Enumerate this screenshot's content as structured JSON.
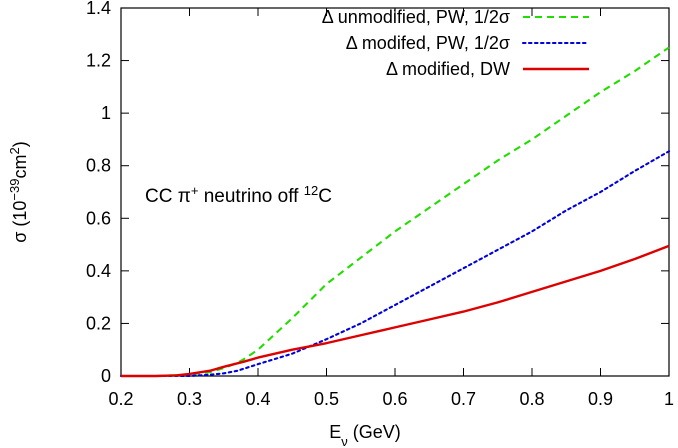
{
  "chart_data": {
    "type": "line",
    "xlabel": {
      "main": "E",
      "sub": "ν",
      "rest": " (GeV)"
    },
    "ylabel": {
      "main": "σ (10",
      "sup1": "−39",
      "mid": "cm",
      "sup2": "2",
      "end": ")"
    },
    "xlim": [
      0.2,
      1.0
    ],
    "ylim": [
      0,
      1.4
    ],
    "x_ticks": [
      0.2,
      0.3,
      0.4,
      0.5,
      0.6,
      0.7,
      0.8,
      0.9,
      1.0
    ],
    "x_tick_labels": [
      "0.2",
      "0.3",
      "0.4",
      "0.5",
      "0.6",
      "0.7",
      "0.8",
      "0.9",
      "1"
    ],
    "y_ticks": [
      0,
      0.2,
      0.4,
      0.6,
      0.8,
      1.0,
      1.2,
      1.4
    ],
    "y_tick_labels": [
      "0",
      "0.2",
      "0.4",
      "0.6",
      "0.8",
      "1",
      "1.2",
      "1.4"
    ],
    "grid": false,
    "legend_position": "top-right",
    "annotation": {
      "prefix": "CC π",
      "sup1": "+",
      "middle": " neutrino off ",
      "sup2": "12",
      "suffix": "C"
    },
    "series": [
      {
        "name": "Δ unmodified, PW, 1/2σ",
        "color": "#22dd00",
        "dash": "dashed",
        "x": [
          0.2,
          0.25,
          0.3,
          0.33,
          0.35,
          0.37,
          0.38,
          0.4,
          0.45,
          0.5,
          0.55,
          0.6,
          0.65,
          0.7,
          0.75,
          0.8,
          0.85,
          0.9,
          0.95,
          1.0
        ],
        "values": [
          0.0,
          0.0,
          0.005,
          0.015,
          0.03,
          0.05,
          0.065,
          0.1,
          0.22,
          0.35,
          0.45,
          0.55,
          0.64,
          0.73,
          0.82,
          0.9,
          0.99,
          1.08,
          1.16,
          1.25
        ]
      },
      {
        "name": "Δ modifed, PW, 1/2σ",
        "color": "#0000dd",
        "dash": "dotted",
        "x": [
          0.2,
          0.25,
          0.3,
          0.33,
          0.35,
          0.37,
          0.4,
          0.45,
          0.5,
          0.55,
          0.6,
          0.65,
          0.7,
          0.75,
          0.8,
          0.85,
          0.9,
          0.95,
          1.0
        ],
        "values": [
          0.0,
          0.0,
          0.0,
          0.005,
          0.01,
          0.02,
          0.045,
          0.085,
          0.14,
          0.2,
          0.27,
          0.34,
          0.41,
          0.48,
          0.55,
          0.63,
          0.7,
          0.78,
          0.855
        ]
      },
      {
        "name": "Δ modified, DW",
        "color": "#dd0000",
        "dash": "solid",
        "x": [
          0.2,
          0.25,
          0.28,
          0.3,
          0.33,
          0.35,
          0.38,
          0.4,
          0.45,
          0.5,
          0.55,
          0.6,
          0.65,
          0.7,
          0.75,
          0.8,
          0.85,
          0.9,
          0.95,
          1.0
        ],
        "values": [
          0.0,
          0.0,
          0.002,
          0.008,
          0.02,
          0.035,
          0.055,
          0.07,
          0.1,
          0.125,
          0.155,
          0.185,
          0.215,
          0.245,
          0.28,
          0.32,
          0.36,
          0.4,
          0.445,
          0.495
        ]
      }
    ]
  }
}
